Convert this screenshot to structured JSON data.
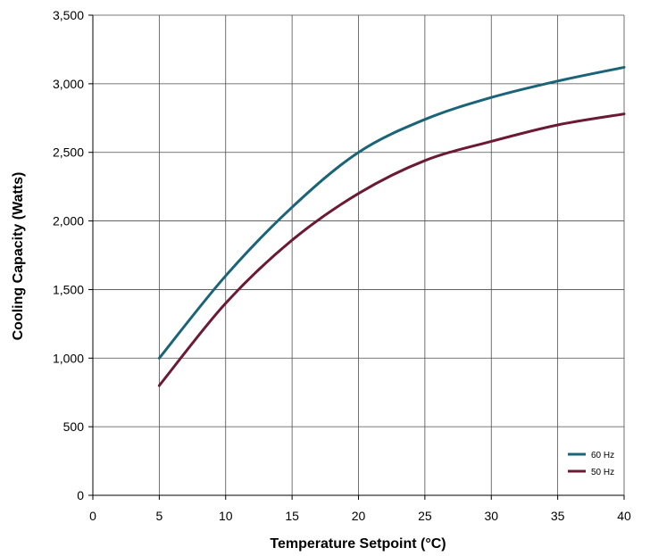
{
  "chart_data": {
    "type": "line",
    "xlabel": "Temperature Setpoint (°C)",
    "ylabel": "Cooling Capacity (Watts)",
    "xlim": [
      0,
      40
    ],
    "ylim": [
      0,
      3500
    ],
    "x_ticks": [
      "0",
      "5",
      "10",
      "15",
      "20",
      "25",
      "30",
      "35",
      "40"
    ],
    "y_ticks": [
      "0",
      "500",
      "1,000",
      "1,500",
      "2,000",
      "2,500",
      "3,000",
      "3,500"
    ],
    "grid": true,
    "legend_position": "bottom-right",
    "series": [
      {
        "name": "60 Hz",
        "color": "#1b6478",
        "x": [
          5,
          10,
          15,
          20,
          25,
          30,
          35,
          40
        ],
        "values": [
          1000,
          1600,
          2100,
          2500,
          2740,
          2900,
          3020,
          3120
        ]
      },
      {
        "name": "50 Hz",
        "color": "#6b1a35",
        "x": [
          5,
          10,
          15,
          20,
          25,
          30,
          35,
          40
        ],
        "values": [
          800,
          1400,
          1860,
          2200,
          2440,
          2580,
          2700,
          2780
        ]
      }
    ]
  }
}
